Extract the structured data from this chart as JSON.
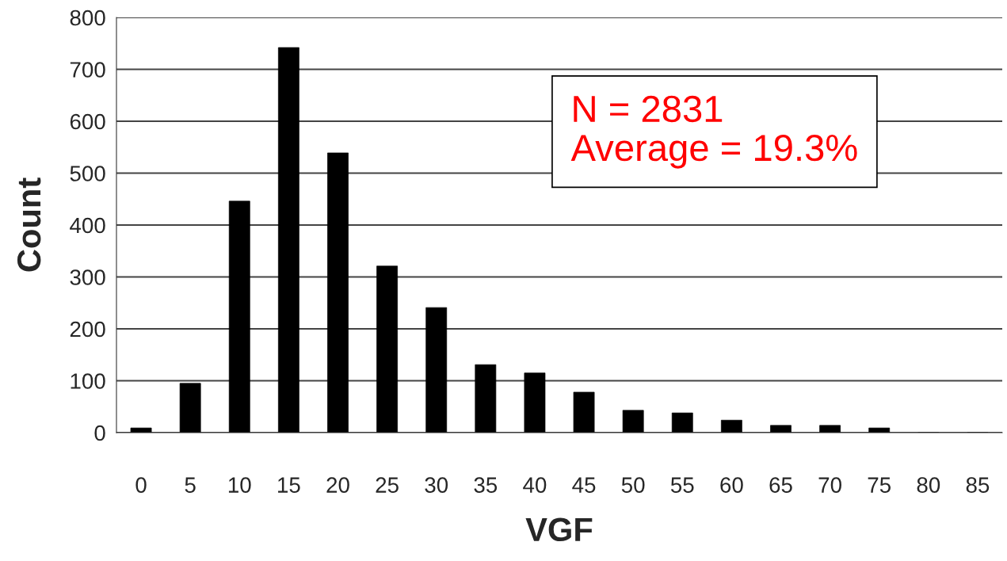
{
  "chart_data": {
    "type": "bar",
    "xlabel": "VGF",
    "ylabel": "Count",
    "categories": [
      "0",
      "5",
      "10",
      "15",
      "20",
      "25",
      "30",
      "35",
      "40",
      "45",
      "50",
      "55",
      "60",
      "65",
      "70",
      "75",
      "80",
      "85"
    ],
    "values": [
      9,
      95,
      446,
      742,
      539,
      321,
      241,
      131,
      115,
      78,
      43,
      38,
      24,
      14,
      14,
      9,
      0,
      0
    ],
    "color": "#000000",
    "ylim": [
      0,
      800
    ],
    "yticks": [
      0,
      100,
      200,
      300,
      400,
      500,
      600,
      700,
      800
    ],
    "grid": "y",
    "annotations": [
      "N = 2831\nAverage = 19.3%"
    ]
  }
}
